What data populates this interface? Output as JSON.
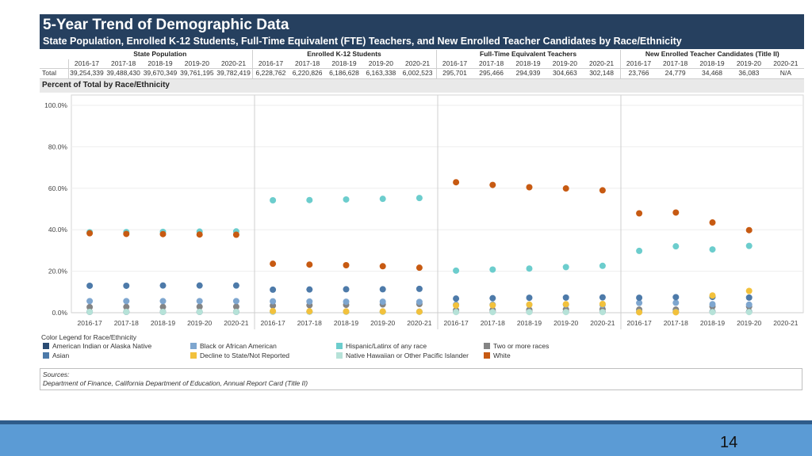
{
  "header": {
    "title": "5-Year Trend of Demographic Data",
    "subtitle": "State Population, Enrolled K-12 Students, Full-Time Equivalent (FTE) Teachers, and New Enrolled Teacher Candidates by Race/Ethnicity"
  },
  "summary": {
    "groups": [
      "State Population",
      "Enrolled K-12 Students",
      "Full-Time Equivalent Teachers",
      "New Enrolled Teacher Candidates (Title II)"
    ],
    "years": [
      "2016-17",
      "2017-18",
      "2018-19",
      "2019-20",
      "2020-21"
    ],
    "total_label": "Total",
    "totals": [
      [
        "39,254,339",
        "39,488,430",
        "39,670,349",
        "39,761,195",
        "39,782,419"
      ],
      [
        "6,228,762",
        "6,220,826",
        "6,186,628",
        "6,163,338",
        "6,002,523"
      ],
      [
        "295,701",
        "295,466",
        "294,939",
        "304,663",
        "302,148"
      ],
      [
        "23,766",
        "24,779",
        "34,468",
        "36,083",
        "N/A"
      ]
    ]
  },
  "section_label": "Percent of Total by Race/Ethnicity",
  "legend": {
    "title": "Color Legend for Race/Ethnicity",
    "items": [
      {
        "label": "American Indian or Alaska Native",
        "color": "#2a4c73"
      },
      {
        "label": "Asian",
        "color": "#4d7aa9"
      },
      {
        "label": "Black or African American",
        "color": "#7ea6cf"
      },
      {
        "label": "Decline to State/Not Reported",
        "color": "#f2c13c"
      },
      {
        "label": "Hispanic/Latinx of any race",
        "color": "#6ccdcd"
      },
      {
        "label": "Native Hawaiian or Other Pacific Islander",
        "color": "#b6e2d8"
      },
      {
        "label": "Two or more races",
        "color": "#848484"
      },
      {
        "label": "White",
        "color": "#c75a12"
      }
    ]
  },
  "sources": {
    "label": "Sources:",
    "text": "Department of Finance, California Department of Education, Annual Report Card (Title II)"
  },
  "page_number": "14",
  "chart_data": {
    "type": "scatter",
    "title": "Percent of Total by Race/Ethnicity",
    "ylim": [
      0,
      100
    ],
    "yticks": [
      0,
      20,
      40,
      60,
      80,
      100
    ],
    "ytick_labels": [
      "0.0%",
      "20.0%",
      "40.0%",
      "60.0%",
      "80.0%",
      "100.0%"
    ],
    "panels": [
      "State Population",
      "Enrolled K-12 Students",
      "Full-Time Equivalent Teachers",
      "New Enrolled Teacher Candidates (Title II)"
    ],
    "categories": [
      "2016-17",
      "2017-18",
      "2018-19",
      "2019-20",
      "2020-21"
    ],
    "series": [
      {
        "name": "American Indian or Alaska Native",
        "color": "#2a4c73",
        "values": [
          [
            0.4,
            0.4,
            0.4,
            0.4,
            0.4
          ],
          [
            0.5,
            0.5,
            0.5,
            0.5,
            0.5
          ],
          [
            0.5,
            0.5,
            0.5,
            0.5,
            0.5
          ],
          [
            0.5,
            0.5,
            0.5,
            0.5,
            null
          ]
        ]
      },
      {
        "name": "Two or more races",
        "color": "#848484",
        "values": [
          [
            2.7,
            2.8,
            2.8,
            2.9,
            2.9
          ],
          [
            3.4,
            3.6,
            3.8,
            4.0,
            4.2
          ],
          [
            1.2,
            1.3,
            1.4,
            1.6,
            1.7
          ],
          [
            1.5,
            1.5,
            3.0,
            3.0,
            null
          ]
        ]
      },
      {
        "name": "Black or African American",
        "color": "#7ea6cf",
        "values": [
          [
            5.6,
            5.6,
            5.6,
            5.6,
            5.6
          ],
          [
            5.5,
            5.4,
            5.3,
            5.3,
            5.2
          ],
          [
            3.9,
            3.9,
            3.9,
            3.9,
            3.8
          ],
          [
            4.7,
            4.8,
            4.1,
            3.9,
            null
          ]
        ]
      },
      {
        "name": "Native Hawaiian or Other Pacific Islander",
        "color": "#b6e2d8",
        "values": [
          [
            0.4,
            0.4,
            0.4,
            0.4,
            0.4
          ],
          [
            0.5,
            0.5,
            0.5,
            0.4,
            0.4
          ],
          [
            0.3,
            0.3,
            0.3,
            0.3,
            0.3
          ],
          [
            0.3,
            0.3,
            0.3,
            0.3,
            null
          ]
        ]
      },
      {
        "name": "Asian",
        "color": "#4d7aa9",
        "values": [
          [
            13.0,
            13.0,
            13.1,
            13.1,
            13.1
          ],
          [
            11.1,
            11.2,
            11.3,
            11.3,
            11.5
          ],
          [
            6.8,
            7.0,
            7.2,
            7.3,
            7.4
          ],
          [
            7.2,
            7.5,
            7.6,
            7.3,
            null
          ]
        ]
      },
      {
        "name": "Hispanic/Latinx of any race",
        "color": "#6ccdcd",
        "values": [
          [
            38.8,
            38.9,
            39.0,
            39.1,
            39.2
          ],
          [
            54.2,
            54.3,
            54.6,
            54.9,
            55.3
          ],
          [
            20.3,
            20.8,
            21.3,
            22.0,
            22.6
          ],
          [
            29.8,
            32.0,
            30.5,
            32.2,
            null
          ]
        ]
      },
      {
        "name": "White",
        "color": "#c75a12",
        "values": [
          [
            38.3,
            38.0,
            37.9,
            37.7,
            37.6
          ],
          [
            23.6,
            23.2,
            22.9,
            22.4,
            21.7
          ],
          [
            62.9,
            61.6,
            60.5,
            59.9,
            59.0
          ],
          [
            47.9,
            48.3,
            43.5,
            39.8,
            null
          ]
        ]
      },
      {
        "name": "Decline to State/Not Reported",
        "color": "#f2c13c",
        "values": [
          [
            null,
            null,
            null,
            null,
            null
          ],
          [
            0.8,
            0.7,
            0.6,
            0.6,
            0.5
          ],
          [
            3.5,
            3.6,
            3.9,
            4.1,
            4.2
          ],
          [
            0.2,
            0.2,
            8.3,
            10.5,
            null
          ]
        ]
      }
    ]
  }
}
